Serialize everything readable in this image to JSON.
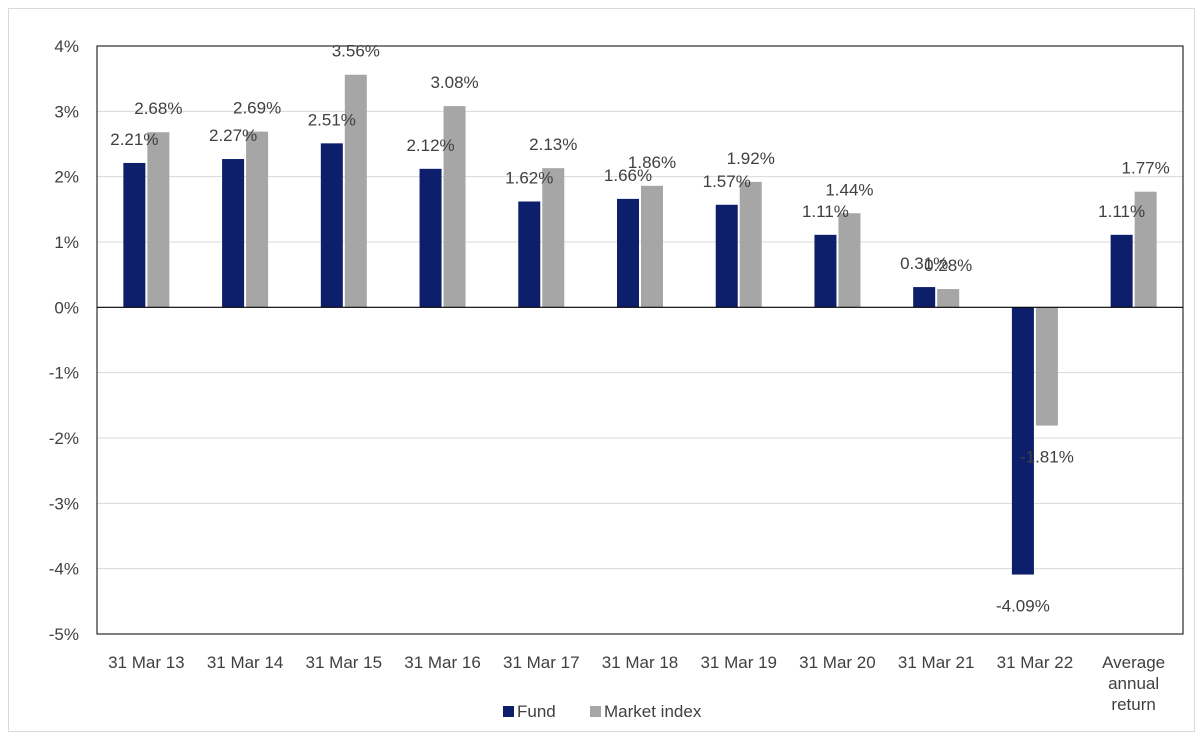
{
  "chart_data": {
    "type": "bar",
    "categories": [
      [
        "31 Mar 13"
      ],
      [
        "31 Mar 14"
      ],
      [
        "31 Mar 15"
      ],
      [
        "31 Mar 16"
      ],
      [
        "31 Mar 17"
      ],
      [
        "31 Mar 18"
      ],
      [
        "31 Mar 19"
      ],
      [
        "31 Mar 20"
      ],
      [
        "31 Mar 21"
      ],
      [
        "31 Mar 22"
      ],
      [
        "Average",
        "annual",
        "return"
      ]
    ],
    "series": [
      {
        "name": "Fund",
        "color": "#0d1f6b",
        "values": [
          2.21,
          2.27,
          2.51,
          2.12,
          1.62,
          1.66,
          1.57,
          1.11,
          0.31,
          -4.09,
          1.11
        ],
        "labels": [
          "2.21%",
          "2.27%",
          "2.51%",
          "2.12%",
          "1.62%",
          "1.66%",
          "1.57%",
          "1.11%",
          "0.31%",
          "-4.09%",
          "1.11%"
        ]
      },
      {
        "name": "Market index",
        "color": "#a6a6a6",
        "values": [
          2.68,
          2.69,
          3.56,
          3.08,
          2.13,
          1.86,
          1.92,
          1.44,
          0.28,
          -1.81,
          1.77
        ],
        "labels": [
          "2.68%",
          "2.69%",
          "3.56%",
          "3.08%",
          "2.13%",
          "1.86%",
          "1.92%",
          "1.44%",
          "0.28%",
          "-1.81%",
          "1.77%"
        ]
      }
    ],
    "ylim": [
      -5,
      4
    ],
    "yticks": [
      4,
      3,
      2,
      1,
      0,
      -1,
      -2,
      -3,
      -4,
      -5
    ],
    "ytick_labels": [
      "4%",
      "3%",
      "2%",
      "1%",
      "0%",
      "-1%",
      "-2%",
      "-3%",
      "-4%",
      "-5%"
    ],
    "grid": true,
    "legend_position": "bottom",
    "title": "",
    "xlabel": "",
    "ylabel": ""
  }
}
